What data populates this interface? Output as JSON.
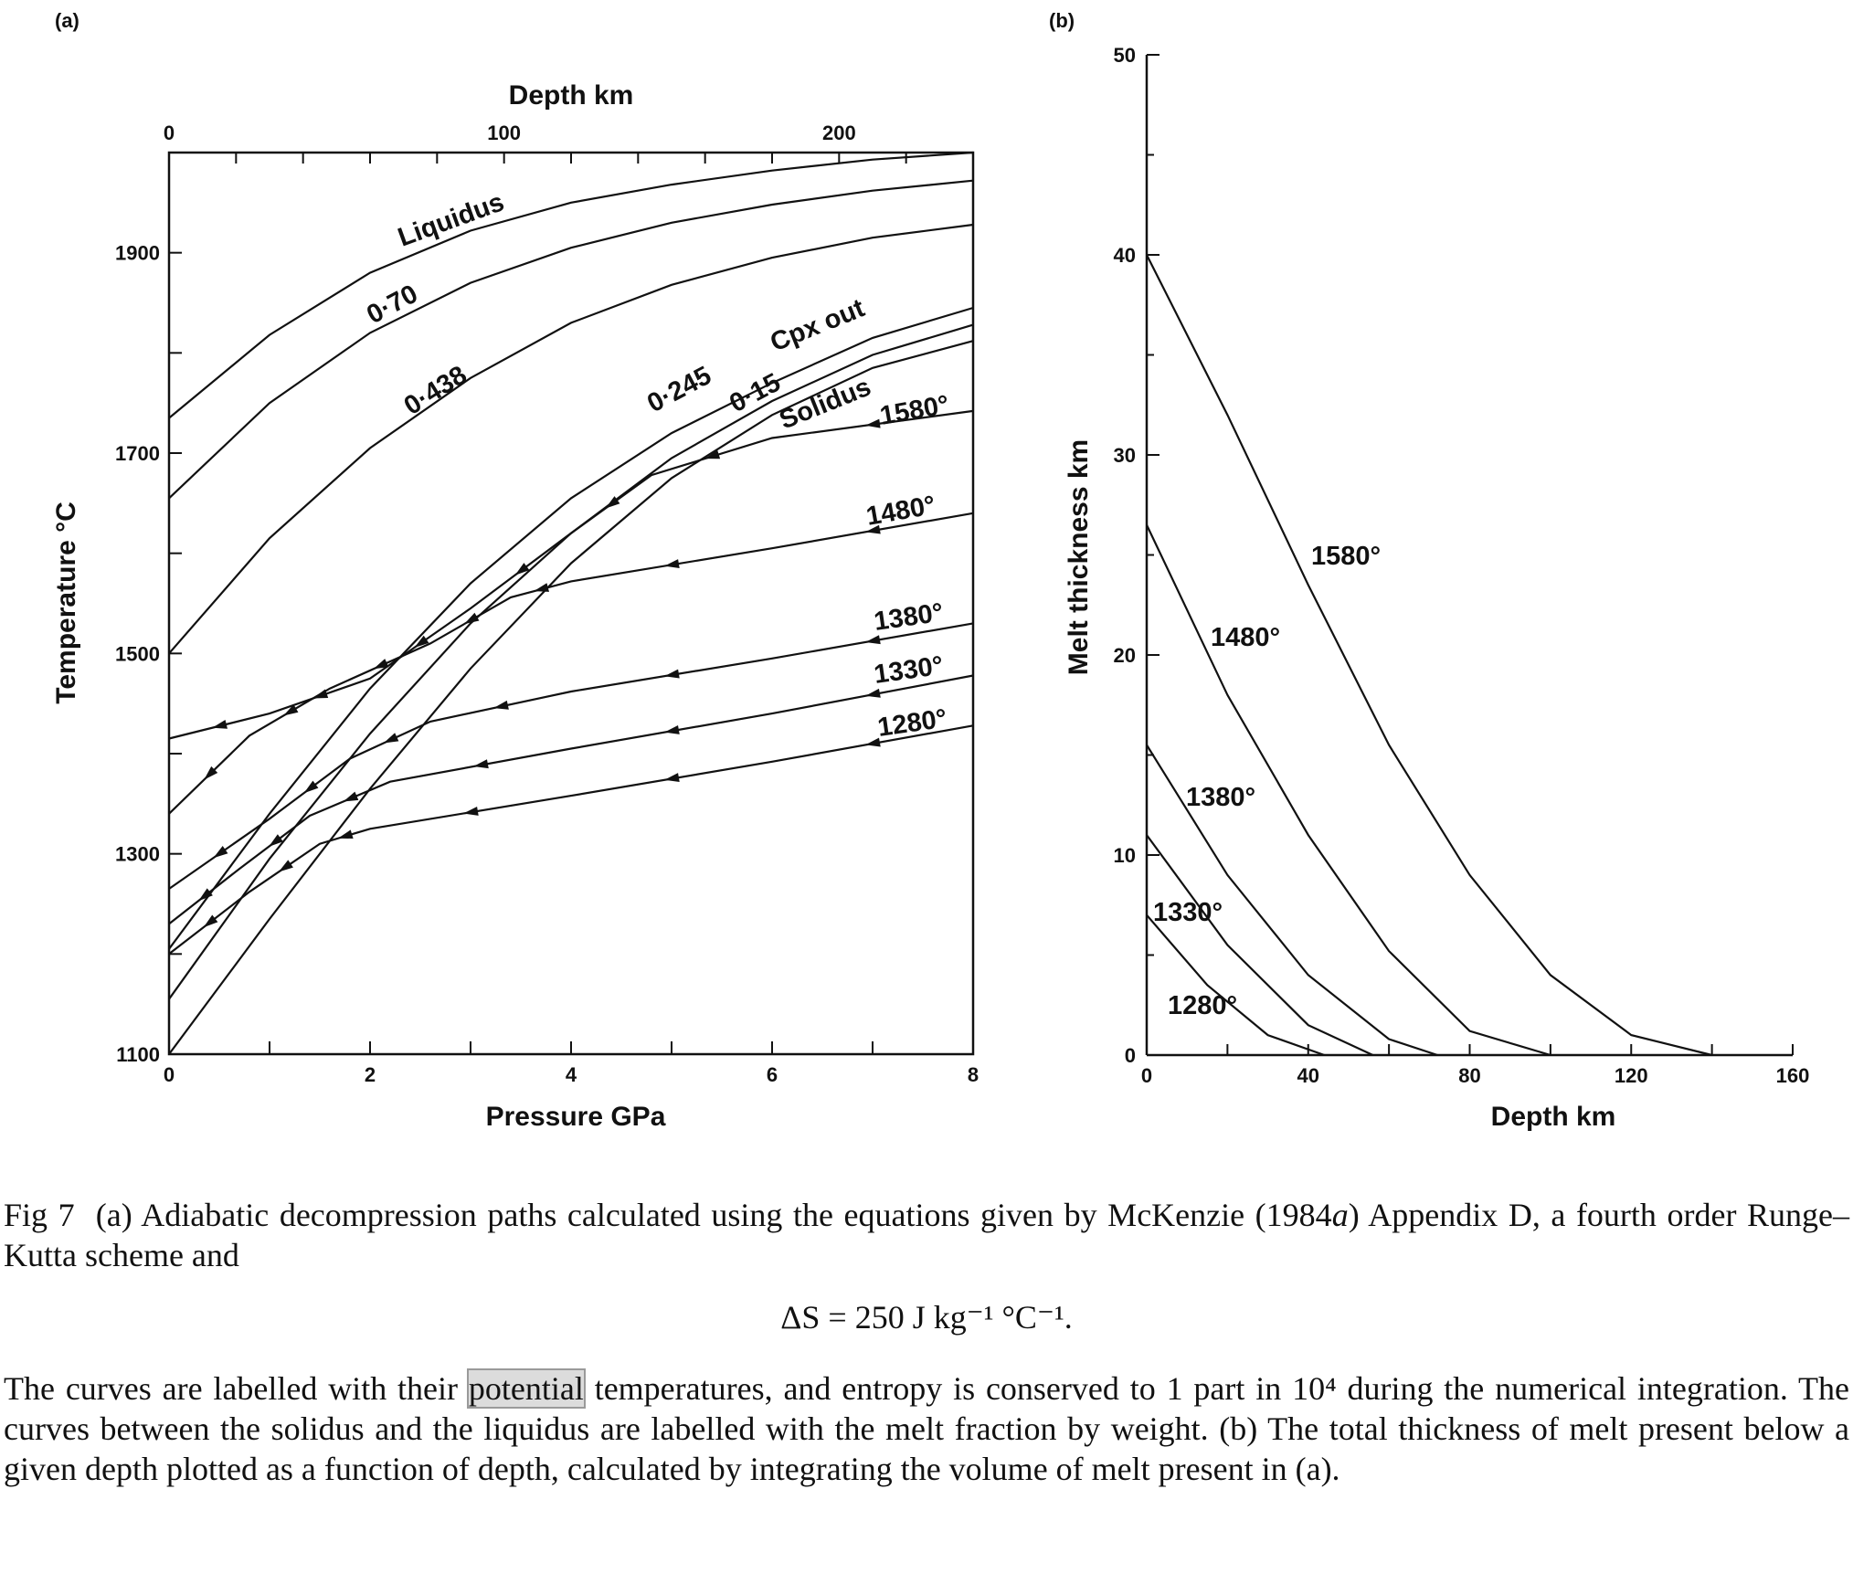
{
  "panel_a": {
    "tag": "(a)",
    "x_top_label": "Depth km",
    "x_top_ticks": [
      "0",
      "100",
      "200"
    ],
    "x_label": "Pressure GPa",
    "x_ticks": [
      "0",
      "2",
      "4",
      "6",
      "8"
    ],
    "y_label": "Temperature °C",
    "y_ticks": [
      "1100",
      "1300",
      "1500",
      "1700",
      "1900"
    ]
  },
  "panel_b": {
    "tag": "(b)",
    "x_label": "Depth km",
    "x_ticks": [
      "0",
      "40",
      "80",
      "120",
      "160"
    ],
    "y_label": "Melt thickness km",
    "y_ticks": [
      "0",
      "10",
      "20",
      "30",
      "40",
      "50"
    ]
  },
  "caption": {
    "fig_label": "Fig 7",
    "line1_pre": "(a) Adiabatic decompression paths calculated using the equations given by McKenzie (1984",
    "line1_ital": "a",
    "line1_post": ") Appendix D, a fourth order Runge–Kutta scheme and",
    "equation": "ΔS = 250 J kg⁻¹ °C⁻¹.",
    "line2_pre": "The curves are labelled with their",
    "highlight": "potential",
    "line2_post": "temperatures, and entropy is conserved to 1 part in 10⁴ during the numerical integration. The curves between the solidus and the liquidus are labelled with the melt fraction by weight.",
    "line3": "(b) The total thickness of melt present below a given depth plotted as a function of depth, calculated by integrating the volume of melt present in (a)."
  },
  "chart_data": [
    {
      "type": "line",
      "panel": "a",
      "xlabel": "Pressure GPa",
      "x2label": "Depth km",
      "ylabel": "Temperature °C",
      "xlim": [
        0,
        8
      ],
      "ylim": [
        1100,
        2000
      ],
      "x2lim": [
        0,
        240
      ],
      "grid": false,
      "phase_curves": [
        {
          "name": "Liquidus",
          "x": [
            0,
            1,
            2,
            3,
            4,
            5,
            6,
            7,
            8
          ],
          "y": [
            1735,
            1818,
            1880,
            1922,
            1950,
            1968,
            1982,
            1993,
            2000
          ]
        },
        {
          "name": "0·70",
          "x": [
            0,
            1,
            2,
            3,
            4,
            5,
            6,
            7,
            8
          ],
          "y": [
            1655,
            1750,
            1820,
            1870,
            1905,
            1930,
            1948,
            1962,
            1972
          ]
        },
        {
          "name": "0·438",
          "x": [
            0,
            1,
            2,
            3,
            4,
            5,
            6,
            7,
            8
          ],
          "y": [
            1500,
            1615,
            1705,
            1775,
            1830,
            1868,
            1895,
            1915,
            1928
          ]
        },
        {
          "name": "0·245",
          "x": [
            0,
            1,
            2,
            3,
            4,
            5,
            6,
            7,
            8
          ],
          "y": [
            1205,
            1340,
            1465,
            1570,
            1655,
            1720,
            1770,
            1815,
            1845
          ]
        },
        {
          "name": "Cpx out",
          "x": [
            0,
            1,
            2,
            3,
            4,
            5,
            6,
            7,
            8
          ],
          "y": [
            1205,
            1340,
            1465,
            1570,
            1655,
            1720,
            1770,
            1815,
            1845
          ]
        },
        {
          "name": "0·15",
          "x": [
            0,
            1,
            2,
            3,
            4,
            5,
            6,
            7,
            8
          ],
          "y": [
            1155,
            1295,
            1420,
            1530,
            1620,
            1695,
            1752,
            1798,
            1828
          ]
        },
        {
          "name": "Solidus",
          "x": [
            0,
            1,
            2,
            3,
            4,
            5,
            6,
            7,
            8
          ],
          "y": [
            1100,
            1235,
            1365,
            1485,
            1590,
            1675,
            1738,
            1785,
            1812
          ]
        }
      ],
      "adiabats": [
        {
          "name": "1580°",
          "x": [
            8,
            6,
            4.8,
            4,
            3,
            2,
            1,
            0
          ],
          "y": [
            1742,
            1715,
            1678,
            1620,
            1545,
            1475,
            1440,
            1415
          ]
        },
        {
          "name": "1480°",
          "x": [
            8,
            6,
            4,
            3.4,
            2.6,
            1.6,
            0.8,
            0
          ],
          "y": [
            1640,
            1605,
            1572,
            1556,
            1510,
            1465,
            1418,
            1340
          ]
        },
        {
          "name": "1380°",
          "x": [
            8,
            6,
            4,
            2.6,
            1.8,
            1,
            0
          ],
          "y": [
            1530,
            1495,
            1462,
            1432,
            1395,
            1335,
            1265
          ]
        },
        {
          "name": "1330°",
          "x": [
            8,
            6,
            4,
            2.2,
            1.4,
            0.7,
            0
          ],
          "y": [
            1478,
            1440,
            1405,
            1372,
            1338,
            1285,
            1230
          ]
        },
        {
          "name": "1280°",
          "x": [
            8,
            6,
            4,
            2,
            1.5,
            0.8,
            0
          ],
          "y": [
            1428,
            1392,
            1358,
            1325,
            1310,
            1262,
            1200
          ]
        }
      ],
      "annotations": [
        "Liquidus",
        "0·70",
        "0·438",
        "0·245",
        "Cpx out",
        "0·15",
        "Solidus",
        "1580°",
        "1480°",
        "1380°",
        "1330°",
        "1280°"
      ]
    },
    {
      "type": "line",
      "panel": "b",
      "xlabel": "Depth km",
      "ylabel": "Melt thickness km",
      "xlim": [
        0,
        160
      ],
      "ylim": [
        0,
        50
      ],
      "grid": false,
      "series": [
        {
          "name": "1580°",
          "x": [
            0,
            20,
            40,
            60,
            80,
            100,
            120,
            140
          ],
          "y": [
            40,
            32,
            23.5,
            15.5,
            9,
            4,
            1,
            0
          ]
        },
        {
          "name": "1480°",
          "x": [
            0,
            20,
            40,
            60,
            80,
            100
          ],
          "y": [
            26.5,
            18,
            11,
            5.2,
            1.2,
            0
          ]
        },
        {
          "name": "1380°",
          "x": [
            0,
            20,
            40,
            60,
            72
          ],
          "y": [
            15.5,
            9,
            4,
            0.8,
            0
          ]
        },
        {
          "name": "1330°",
          "x": [
            0,
            20,
            40,
            56
          ],
          "y": [
            11,
            5.5,
            1.5,
            0
          ]
        },
        {
          "name": "1280°",
          "x": [
            0,
            15,
            30,
            44
          ],
          "y": [
            7,
            3.5,
            1,
            0
          ]
        }
      ]
    }
  ]
}
